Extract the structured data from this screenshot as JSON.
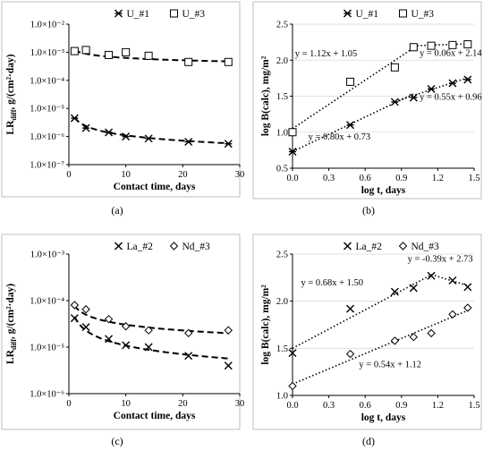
{
  "figure": {
    "background": "#ffffff",
    "ink": "#000000",
    "plot_border": "#bfbfbf",
    "grid": "#d9d9d9"
  },
  "panel_labels": [
    "(a)",
    "(b)",
    "(c)",
    "(d)"
  ],
  "chart_data": [
    {
      "type": "scatter",
      "panel": "a",
      "xlabel": "Contact time, days",
      "ylabel_main": "LR",
      "ylabel_sub": "diff",
      "ylabel_rest": ", g/(cm²·day)",
      "xlim": [
        0,
        30
      ],
      "xticks": [
        0,
        10,
        20,
        30
      ],
      "ylog": true,
      "ylim": [
        -7,
        -2
      ],
      "yticks": [
        -7,
        -6,
        -5,
        -4,
        -3,
        -2
      ],
      "ytick_labels": [
        "1.0×10⁻⁷",
        "1.0×10⁻⁶",
        "1.0×10⁻⁵",
        "1.0×10⁻⁴",
        "1.0×10⁻³",
        "1.0×10⁻²"
      ],
      "legend": "top-center",
      "grid": false,
      "series": [
        {
          "name": "U_#1",
          "marker": "star",
          "x": [
            1,
            3,
            7,
            10,
            14,
            21,
            28
          ],
          "y": [
            4.5e-06,
            2e-06,
            1.4e-06,
            1e-06,
            8.5e-07,
            6.5e-07,
            5.5e-07
          ],
          "fit": "power",
          "fit_a": 4.7e-06,
          "fit_b": -0.63
        },
        {
          "name": "U_#3",
          "marker": "square",
          "x": [
            1,
            3,
            7,
            10,
            14,
            21,
            28
          ],
          "y": [
            0.0011,
            0.0012,
            0.0008,
            0.001,
            0.00075,
            0.00045,
            0.00045
          ],
          "fit": "power",
          "fit_a": 0.0012,
          "fit_b": -0.28
        }
      ]
    },
    {
      "type": "scatter",
      "panel": "b",
      "xlabel": "log t, days",
      "ylabel": "log B(calc), mg/m²",
      "xlim": [
        0,
        1.5
      ],
      "xticks": [
        0,
        0.3,
        0.6,
        0.9,
        1.2,
        1.5
      ],
      "xtick_labels": [
        "0.0",
        "0.3",
        "0.6",
        "0.9",
        "1.2",
        "1.5"
      ],
      "ylim": [
        0.5,
        2.5
      ],
      "yticks": [
        0.5,
        1.0,
        1.5,
        2.0,
        2.5
      ],
      "ytick_labels": [
        "0.5",
        "1.0",
        "1.5",
        "2.0",
        "2.5"
      ],
      "legend": "top-center",
      "grid": true,
      "series": [
        {
          "name": "U_#1",
          "marker": "star",
          "x": [
            0.0,
            0.477,
            0.845,
            1.0,
            1.146,
            1.322,
            1.447
          ],
          "y": [
            0.73,
            1.1,
            1.42,
            1.48,
            1.6,
            1.68,
            1.73
          ]
        },
        {
          "name": "U_#3",
          "marker": "square",
          "x": [
            0.0,
            0.477,
            0.845,
            1.0,
            1.146,
            1.322,
            1.447
          ],
          "y": [
            1.0,
            1.7,
            1.9,
            2.18,
            2.2,
            2.21,
            2.22
          ]
        }
      ],
      "trendlines": [
        {
          "series": 0,
          "slope": 0.8,
          "intercept": 0.73,
          "x": [
            0.0,
            1.0
          ]
        },
        {
          "series": 0,
          "slope": 0.55,
          "intercept": 0.96,
          "x": [
            0.845,
            1.447
          ]
        },
        {
          "series": 1,
          "slope": 1.12,
          "intercept": 1.05,
          "x": [
            0.0,
            1.0
          ]
        },
        {
          "series": 1,
          "slope": 0.06,
          "intercept": 2.14,
          "x": [
            1.0,
            1.447
          ]
        }
      ],
      "annotations": [
        {
          "text": "y = 1.12x + 1.05",
          "x": 0.02,
          "y": 2.05
        },
        {
          "text": "y = 0.06x + 2.14",
          "x": 1.05,
          "y": 2.06
        },
        {
          "text": "y = 0.55x + 0.96",
          "x": 1.05,
          "y": 1.45
        },
        {
          "text": "y = 0.80x + 0.73",
          "x": 0.13,
          "y": 0.9
        }
      ]
    },
    {
      "type": "scatter",
      "panel": "c",
      "xlabel": "Contact time, days",
      "ylabel_main": "LR",
      "ylabel_sub": "diff",
      "ylabel_rest": ", g/(cm²·day)",
      "xlim": [
        0,
        30
      ],
      "xticks": [
        0,
        10,
        20,
        30
      ],
      "ylog": true,
      "ylim": [
        -6,
        -3
      ],
      "yticks": [
        -6,
        -5,
        -4,
        -3
      ],
      "ytick_labels": [
        "1.0×10⁻⁶",
        "1.0×10⁻⁵",
        "1.0×10⁻⁴",
        "1.0×10⁻³"
      ],
      "legend": "top-center",
      "grid": false,
      "series": [
        {
          "name": "La_#2",
          "marker": "x",
          "x": [
            1,
            3,
            7,
            10,
            14,
            21,
            28
          ],
          "y": [
            4.2e-05,
            2.7e-05,
            1.5e-05,
            1.1e-05,
            1e-05,
            6.5e-06,
            4e-06
          ],
          "fit": "power",
          "fit_a": 4.5e-05,
          "fit_b": -0.62
        },
        {
          "name": "Nd_#3",
          "marker": "diamond",
          "x": [
            1,
            3,
            7,
            10,
            14,
            21,
            28
          ],
          "y": [
            8e-05,
            6.5e-05,
            4e-05,
            2.8e-05,
            2.3e-05,
            2e-05,
            2.3e-05
          ],
          "fit": "power",
          "fit_a": 7.8e-05,
          "fit_b": -0.41
        }
      ]
    },
    {
      "type": "scatter",
      "panel": "d",
      "xlabel": "log t, days",
      "ylabel": "log B(calc), mg/m²",
      "xlim": [
        0,
        1.5
      ],
      "xticks": [
        0,
        0.3,
        0.6,
        0.9,
        1.2,
        1.5
      ],
      "xtick_labels": [
        "0.0",
        "0.3",
        "0.6",
        "0.9",
        "1.2",
        "1.5"
      ],
      "ylim": [
        1.0,
        2.5
      ],
      "yticks": [
        1.0,
        1.5,
        2.0,
        2.5
      ],
      "ytick_labels": [
        "1.0",
        "1.5",
        "2.0",
        "2.5"
      ],
      "legend": "top-center",
      "grid": true,
      "series": [
        {
          "name": "La_#2",
          "marker": "x",
          "x": [
            0.0,
            0.477,
            0.845,
            1.0,
            1.146,
            1.322,
            1.447
          ],
          "y": [
            1.45,
            1.92,
            2.1,
            2.14,
            2.27,
            2.22,
            2.15
          ]
        },
        {
          "name": "Nd_#3",
          "marker": "diamond",
          "x": [
            0.0,
            0.477,
            0.845,
            1.0,
            1.146,
            1.322,
            1.447
          ],
          "y": [
            1.1,
            1.44,
            1.58,
            1.62,
            1.66,
            1.86,
            1.93
          ]
        }
      ],
      "trendlines": [
        {
          "series": 0,
          "slope": 0.68,
          "intercept": 1.5,
          "x": [
            0.0,
            1.146
          ]
        },
        {
          "series": 0,
          "slope": -0.39,
          "intercept": 2.73,
          "x": [
            1.146,
            1.447
          ]
        },
        {
          "series": 1,
          "slope": 0.54,
          "intercept": 1.12,
          "x": [
            0.0,
            1.447
          ]
        }
      ],
      "annotations": [
        {
          "text": "y = -0.39x + 2.73",
          "x": 0.95,
          "y": 2.42
        },
        {
          "text": "y = 0.68x + 1.50",
          "x": 0.07,
          "y": 2.17
        },
        {
          "text": "y = 0.54x + 1.12",
          "x": 0.55,
          "y": 1.3
        }
      ]
    }
  ]
}
